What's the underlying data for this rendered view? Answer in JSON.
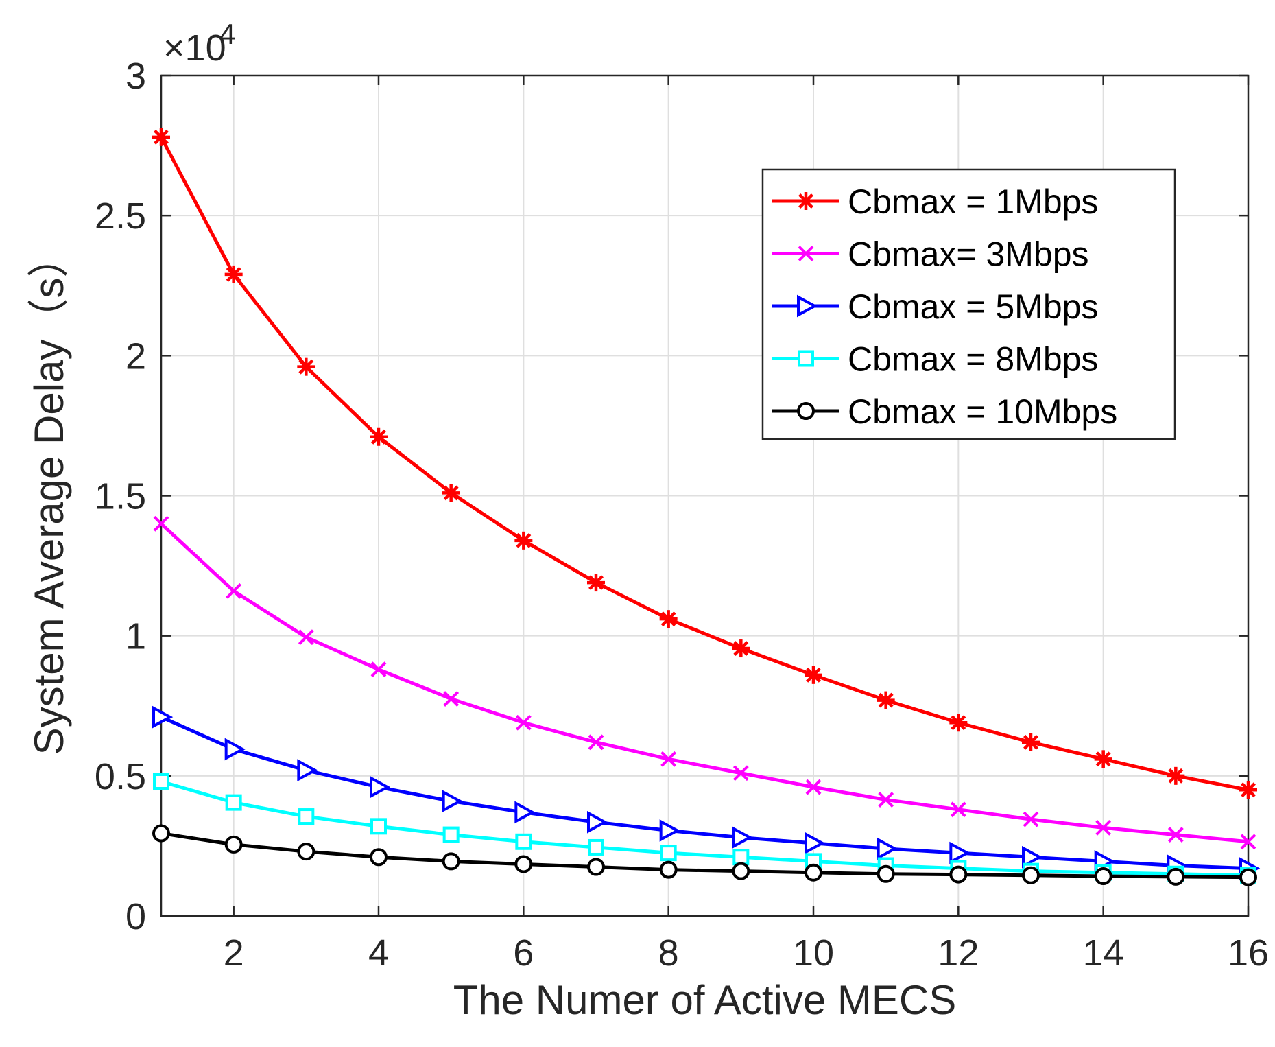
{
  "chart_data": {
    "type": "line",
    "title": "",
    "xlabel": "The Numer of Active MECS",
    "ylabel": "System Average Delay（s）",
    "y_multiplier": {
      "base": "×10",
      "exponent": "4"
    },
    "xlim": [
      1,
      16
    ],
    "ylim": [
      0,
      30000
    ],
    "xticks": [
      2,
      4,
      6,
      8,
      10,
      12,
      14,
      16
    ],
    "xtick_labels": [
      "2",
      "4",
      "6",
      "8",
      "10",
      "12",
      "14",
      "16"
    ],
    "yticks": [
      0,
      5000,
      10000,
      15000,
      20000,
      25000,
      30000
    ],
    "ytick_labels": [
      "0",
      "0.5",
      "1",
      "1.5",
      "2",
      "2.5",
      "3"
    ],
    "grid": true,
    "legend_position": "top-right",
    "x": [
      1,
      2,
      3,
      4,
      5,
      6,
      7,
      8,
      9,
      10,
      11,
      12,
      13,
      14,
      15,
      16
    ],
    "series": [
      {
        "name": "Cbmax = 1Mbps",
        "color": "#ff0000",
        "marker": "asterisk",
        "values": [
          27800,
          22900,
          19600,
          17100,
          15100,
          13400,
          11900,
          10600,
          9550,
          8600,
          7700,
          6900,
          6200,
          5600,
          5000,
          4500
        ]
      },
      {
        "name": "Cbmax= 3Mbps",
        "color": "#ff00ff",
        "marker": "x",
        "values": [
          14000,
          11600,
          9950,
          8800,
          7750,
          6900,
          6200,
          5600,
          5100,
          4600,
          4150,
          3800,
          3450,
          3150,
          2900,
          2650
        ]
      },
      {
        "name": "Cbmax = 5Mbps",
        "color": "#0000ff",
        "marker": "triangle-right",
        "values": [
          7100,
          5950,
          5200,
          4600,
          4100,
          3700,
          3350,
          3050,
          2800,
          2600,
          2400,
          2250,
          2100,
          1950,
          1800,
          1700
        ]
      },
      {
        "name": "Cbmax = 8Mbps",
        "color": "#00ffff",
        "marker": "square",
        "values": [
          4800,
          4050,
          3550,
          3200,
          2900,
          2650,
          2450,
          2250,
          2100,
          1950,
          1800,
          1700,
          1600,
          1550,
          1500,
          1450
        ]
      },
      {
        "name": "Cbmax = 10Mbps",
        "color": "#000000",
        "marker": "circle",
        "values": [
          2950,
          2550,
          2300,
          2100,
          1950,
          1850,
          1750,
          1650,
          1600,
          1550,
          1500,
          1480,
          1450,
          1420,
          1400,
          1380
        ]
      }
    ]
  }
}
